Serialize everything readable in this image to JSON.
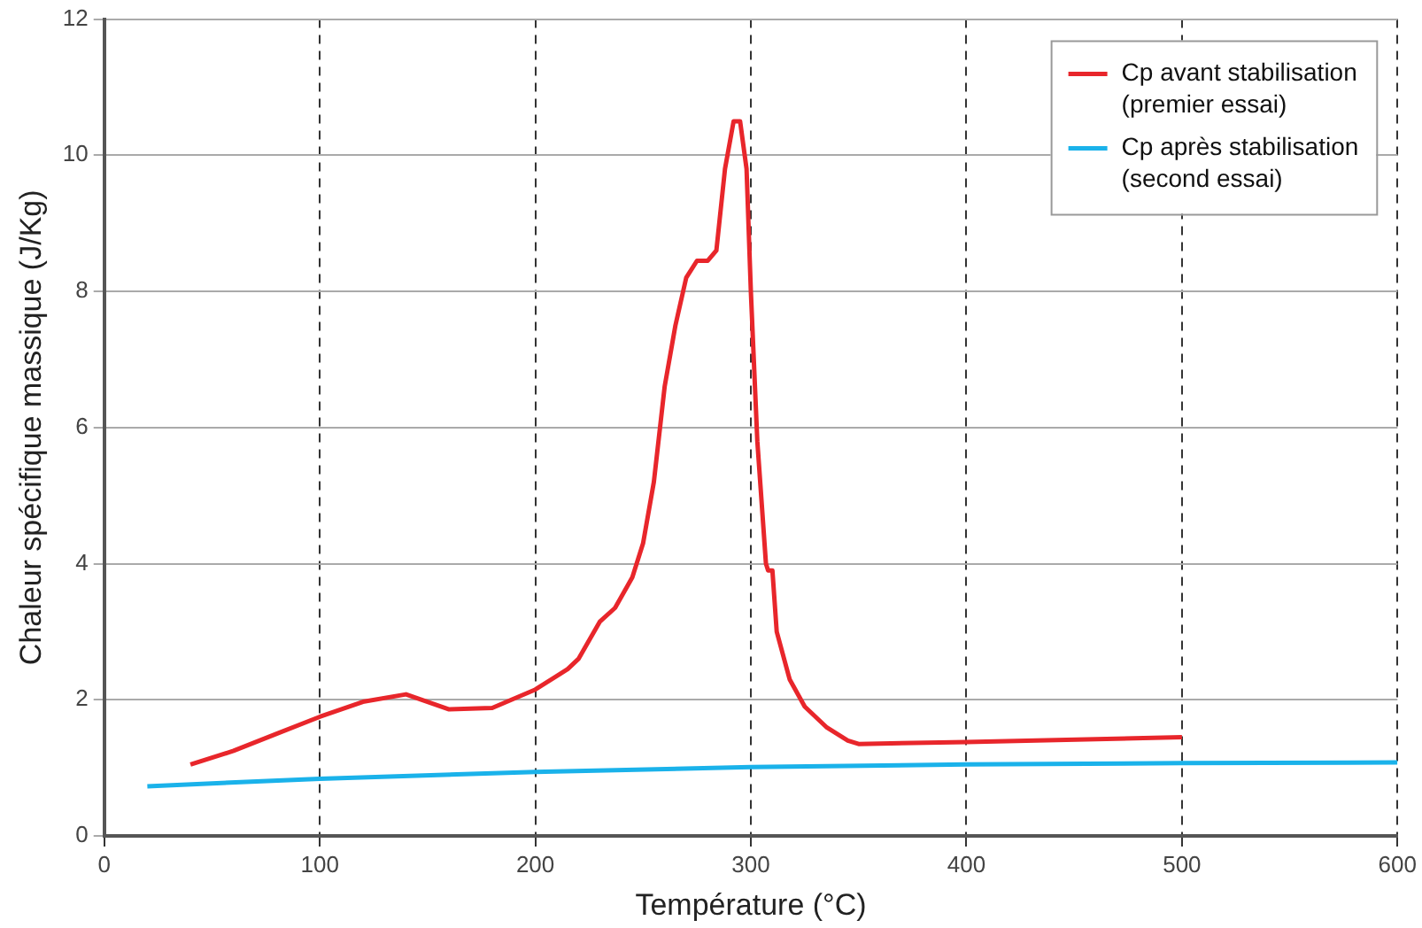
{
  "chart_data": {
    "type": "line",
    "xlabel": "Température (°C)",
    "ylabel": "Chaleur spécifique massique (J/Kg)",
    "xlim": [
      0,
      600
    ],
    "xticks": [
      0,
      100,
      200,
      300,
      400,
      500,
      600
    ],
    "ylim": [
      0,
      12
    ],
    "yticks": [
      0,
      2,
      4,
      6,
      8,
      10,
      12
    ],
    "grid": true,
    "legend": "top right",
    "marker": "none",
    "series": [
      {
        "name": "Cp avant stabilisation\n(premier essai)",
        "color": "#e8262b",
        "x": [
          40,
          60,
          80,
          100,
          120,
          140,
          160,
          180,
          200,
          215,
          220,
          230,
          237,
          245,
          250,
          255,
          260,
          265,
          270,
          275,
          280,
          284,
          288,
          292,
          295,
          298,
          300,
          303,
          307,
          308,
          310,
          312,
          318,
          325,
          335,
          345,
          350,
          400,
          500
        ],
        "values": [
          1.05,
          1.25,
          1.5,
          1.75,
          1.97,
          2.08,
          1.86,
          1.88,
          2.15,
          2.45,
          2.6,
          3.15,
          3.35,
          3.8,
          4.3,
          5.2,
          6.6,
          7.5,
          8.2,
          8.45,
          8.45,
          8.6,
          9.8,
          10.5,
          10.5,
          9.8,
          8.0,
          5.8,
          4.0,
          3.9,
          3.9,
          3.0,
          2.3,
          1.9,
          1.6,
          1.4,
          1.35,
          1.38,
          1.45
        ]
      },
      {
        "name": "Cp après stabilisation\n(second essai)",
        "color": "#1ab2ea",
        "x": [
          20,
          100,
          200,
          300,
          400,
          500,
          600
        ],
        "values": [
          0.73,
          0.84,
          0.94,
          1.01,
          1.05,
          1.07,
          1.08
        ]
      }
    ]
  }
}
